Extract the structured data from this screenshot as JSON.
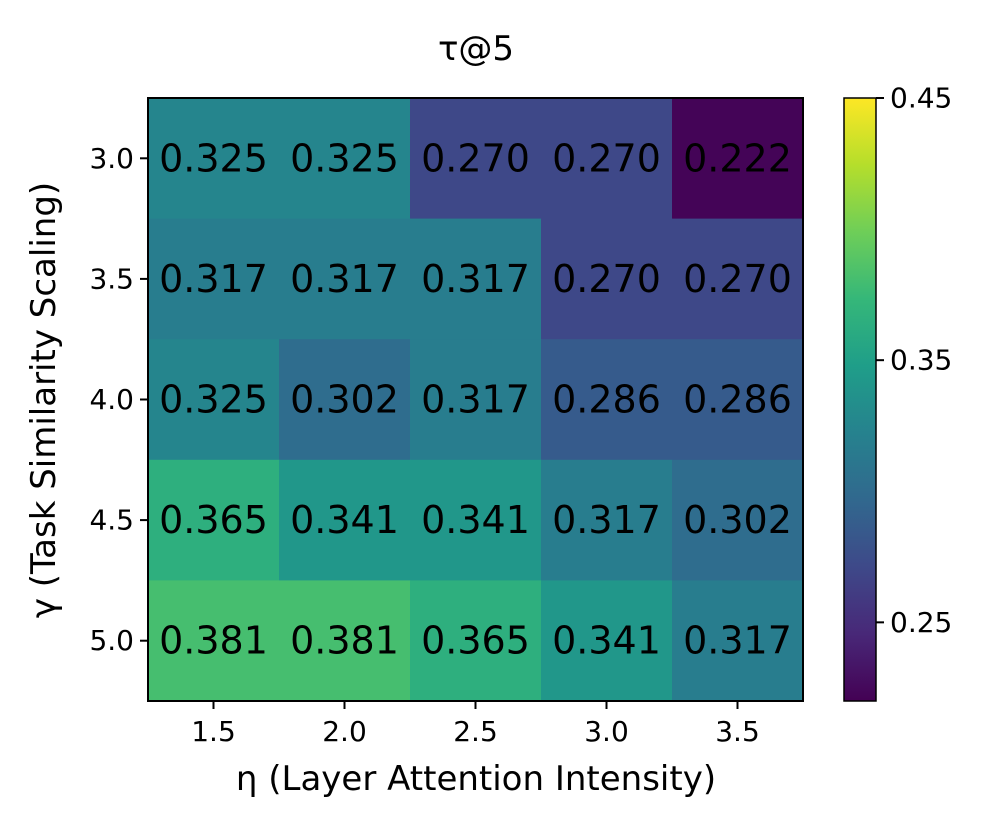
{
  "chart_data": {
    "type": "heatmap",
    "title": "τ@5",
    "xlabel": "η (Layer Attention Intensity)",
    "ylabel": "γ (Task Similarity Scaling)",
    "x_categories": [
      "1.5",
      "2.0",
      "2.5",
      "3.0",
      "3.5"
    ],
    "y_categories": [
      "3.0",
      "3.5",
      "4.0",
      "4.5",
      "5.0"
    ],
    "values": [
      [
        0.325,
        0.325,
        0.27,
        0.27,
        0.222
      ],
      [
        0.317,
        0.317,
        0.317,
        0.27,
        0.27
      ],
      [
        0.325,
        0.302,
        0.317,
        0.286,
        0.286
      ],
      [
        0.365,
        0.341,
        0.341,
        0.317,
        0.302
      ],
      [
        0.381,
        0.381,
        0.365,
        0.341,
        0.317
      ]
    ],
    "value_labels": [
      [
        "0.325",
        "0.325",
        "0.270",
        "0.270",
        "0.222"
      ],
      [
        "0.317",
        "0.317",
        "0.317",
        "0.270",
        "0.270"
      ],
      [
        "0.325",
        "0.302",
        "0.317",
        "0.286",
        "0.286"
      ],
      [
        "0.365",
        "0.341",
        "0.341",
        "0.317",
        "0.302"
      ],
      [
        "0.381",
        "0.381",
        "0.365",
        "0.341",
        "0.317"
      ]
    ],
    "colormap": "viridis",
    "colorbar": {
      "vmin": 0.22,
      "vmax": 0.45,
      "ticks": [
        "0.45",
        "0.35",
        "0.25"
      ],
      "tick_values": [
        0.45,
        0.35,
        0.25
      ]
    },
    "colormap_stops": [
      "#440154",
      "#482878",
      "#3e4989",
      "#31688e",
      "#26828e",
      "#1f9e89",
      "#35b779",
      "#6ece58",
      "#b5de2b",
      "#fde725"
    ]
  }
}
